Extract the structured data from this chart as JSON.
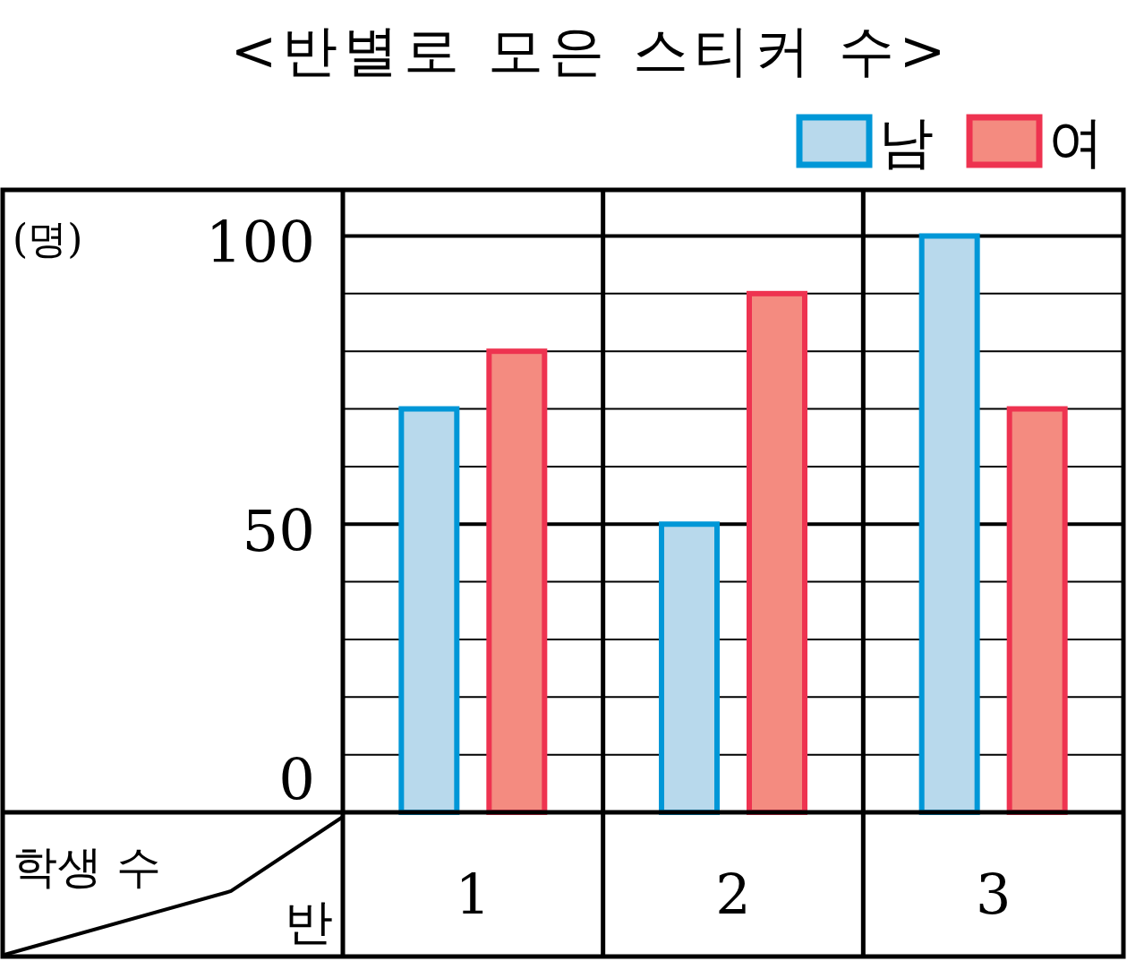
{
  "chart_data": {
    "type": "bar",
    "title": "<반별로 모은 스티커 수>",
    "ylabel": "(명)",
    "xlabel": "반",
    "annotations": [
      "학생 수"
    ],
    "categories": [
      "1",
      "2",
      "3"
    ],
    "series": [
      {
        "name": "남",
        "color": "#b8d9ec",
        "values": [
          70,
          50,
          100
        ]
      },
      {
        "name": "여",
        "color": "#f48b80",
        "values": [
          80,
          90,
          70
        ]
      }
    ],
    "ylim": [
      0,
      108
    ],
    "yticks": [
      0,
      {
        "value": 10,
        "label": null
      },
      {
        "value": 20,
        "label": null
      },
      {
        "value": 30,
        "label": null
      },
      {
        "value": 40,
        "label": null
      },
      50,
      {
        "value": 60,
        "label": null
      },
      {
        "value": 70,
        "label": null
      },
      {
        "value": 80,
        "label": null
      },
      {
        "value": 90,
        "label": null
      },
      100
    ],
    "grid": "y",
    "legend": "top right"
  }
}
